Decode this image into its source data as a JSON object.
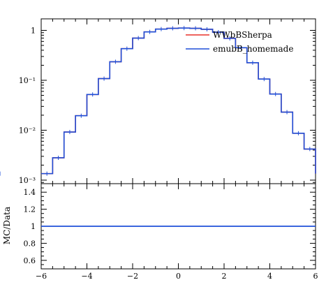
{
  "chart_data": {
    "type": "line",
    "x_edges": [
      -6,
      -5.5,
      -5,
      -4.5,
      -4,
      -3.5,
      -3,
      -2.5,
      -2,
      -1.5,
      -1,
      -0.5,
      0,
      0.5,
      1,
      1.5,
      2,
      2.5,
      3,
      3.5,
      4,
      4.5,
      5,
      5.5,
      6
    ],
    "xlim": [
      -6,
      6
    ],
    "x_ticks": [
      -6,
      -4,
      -2,
      0,
      2,
      4,
      6
    ],
    "x_tick_labels": [
      "−6",
      "−4",
      "−2",
      "0",
      "2",
      "4",
      "6"
    ],
    "main": {
      "yscale": "log",
      "ylim": [
        0.00085,
        1.7
      ],
      "y_ticks": [
        0.001,
        0.01,
        0.1,
        1
      ],
      "y_tick_labels": [
        "10⁻³",
        "10⁻²",
        "10⁻¹",
        "1"
      ],
      "series": [
        {
          "name": "WWbBSherpa",
          "color": "#e8302a",
          "values": [
            0.00135,
            0.0028,
            0.0092,
            0.0195,
            0.052,
            0.108,
            0.235,
            0.43,
            0.7,
            0.93,
            1.06,
            1.1,
            1.11,
            1.1,
            1.05,
            0.92,
            0.69,
            0.45,
            0.225,
            0.106,
            0.053,
            0.023,
            0.0087,
            0.0042,
            0.00135
          ]
        },
        {
          "name": "emubB_homemade",
          "color": "#1f4fd8",
          "values": [
            0.00135,
            0.0028,
            0.0092,
            0.0195,
            0.052,
            0.108,
            0.235,
            0.43,
            0.7,
            0.93,
            1.06,
            1.1,
            1.11,
            1.1,
            1.05,
            0.92,
            0.69,
            0.45,
            0.225,
            0.106,
            0.053,
            0.023,
            0.0087,
            0.0042,
            0.00135
          ]
        }
      ],
      "legend_placement": "top-right"
    },
    "ratio": {
      "ylabel": "MC/Data",
      "ylim": [
        0.5,
        1.5
      ],
      "y_ticks": [
        0.6,
        0.8,
        1,
        1.2,
        1.4
      ],
      "y_tick_labels": [
        "0.6",
        "0.8",
        "1",
        "1.2",
        "1.4"
      ],
      "value": 1.0,
      "color": "#1f4fd8"
    }
  },
  "legend": {
    "entry1": "WWbBSherpa",
    "entry2": "emubB_homemade"
  }
}
